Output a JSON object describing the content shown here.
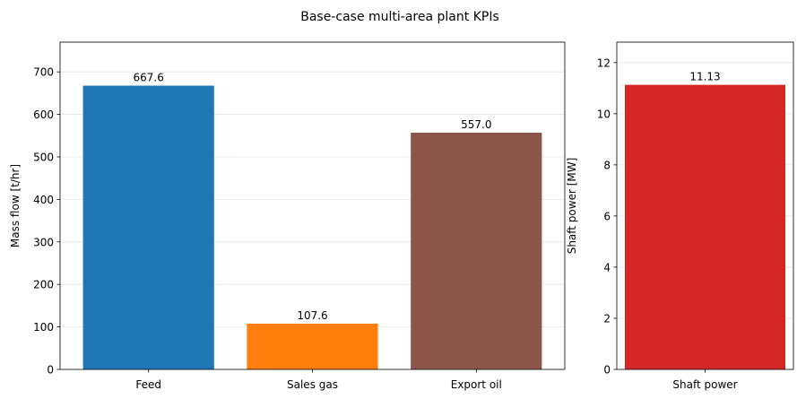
{
  "figure": {
    "title": "Base-case multi-area plant KPIs"
  },
  "chart_data": [
    {
      "type": "bar",
      "categories": [
        "Feed",
        "Sales gas",
        "Export oil"
      ],
      "values": [
        667.6,
        107.6,
        557.0
      ],
      "data_labels": [
        "667.6",
        "107.6",
        "557.0"
      ],
      "colors": [
        "#1f77b4",
        "#ff7f0e",
        "#8c564b"
      ],
      "xlabel": "",
      "ylabel": "Mass flow [t/hr]",
      "ylim": [
        0,
        770
      ],
      "yticks": [
        0,
        100,
        200,
        300,
        400,
        500,
        600,
        700
      ],
      "grid": "y"
    },
    {
      "type": "bar",
      "categories": [
        "Shaft power"
      ],
      "values": [
        11.13
      ],
      "data_labels": [
        "11.13"
      ],
      "colors": [
        "#d62728"
      ],
      "xlabel": "",
      "ylabel": "Shaft power [MW]",
      "ylim": [
        0,
        12.8
      ],
      "yticks": [
        0,
        2,
        4,
        6,
        8,
        10,
        12
      ],
      "grid": "y"
    }
  ]
}
